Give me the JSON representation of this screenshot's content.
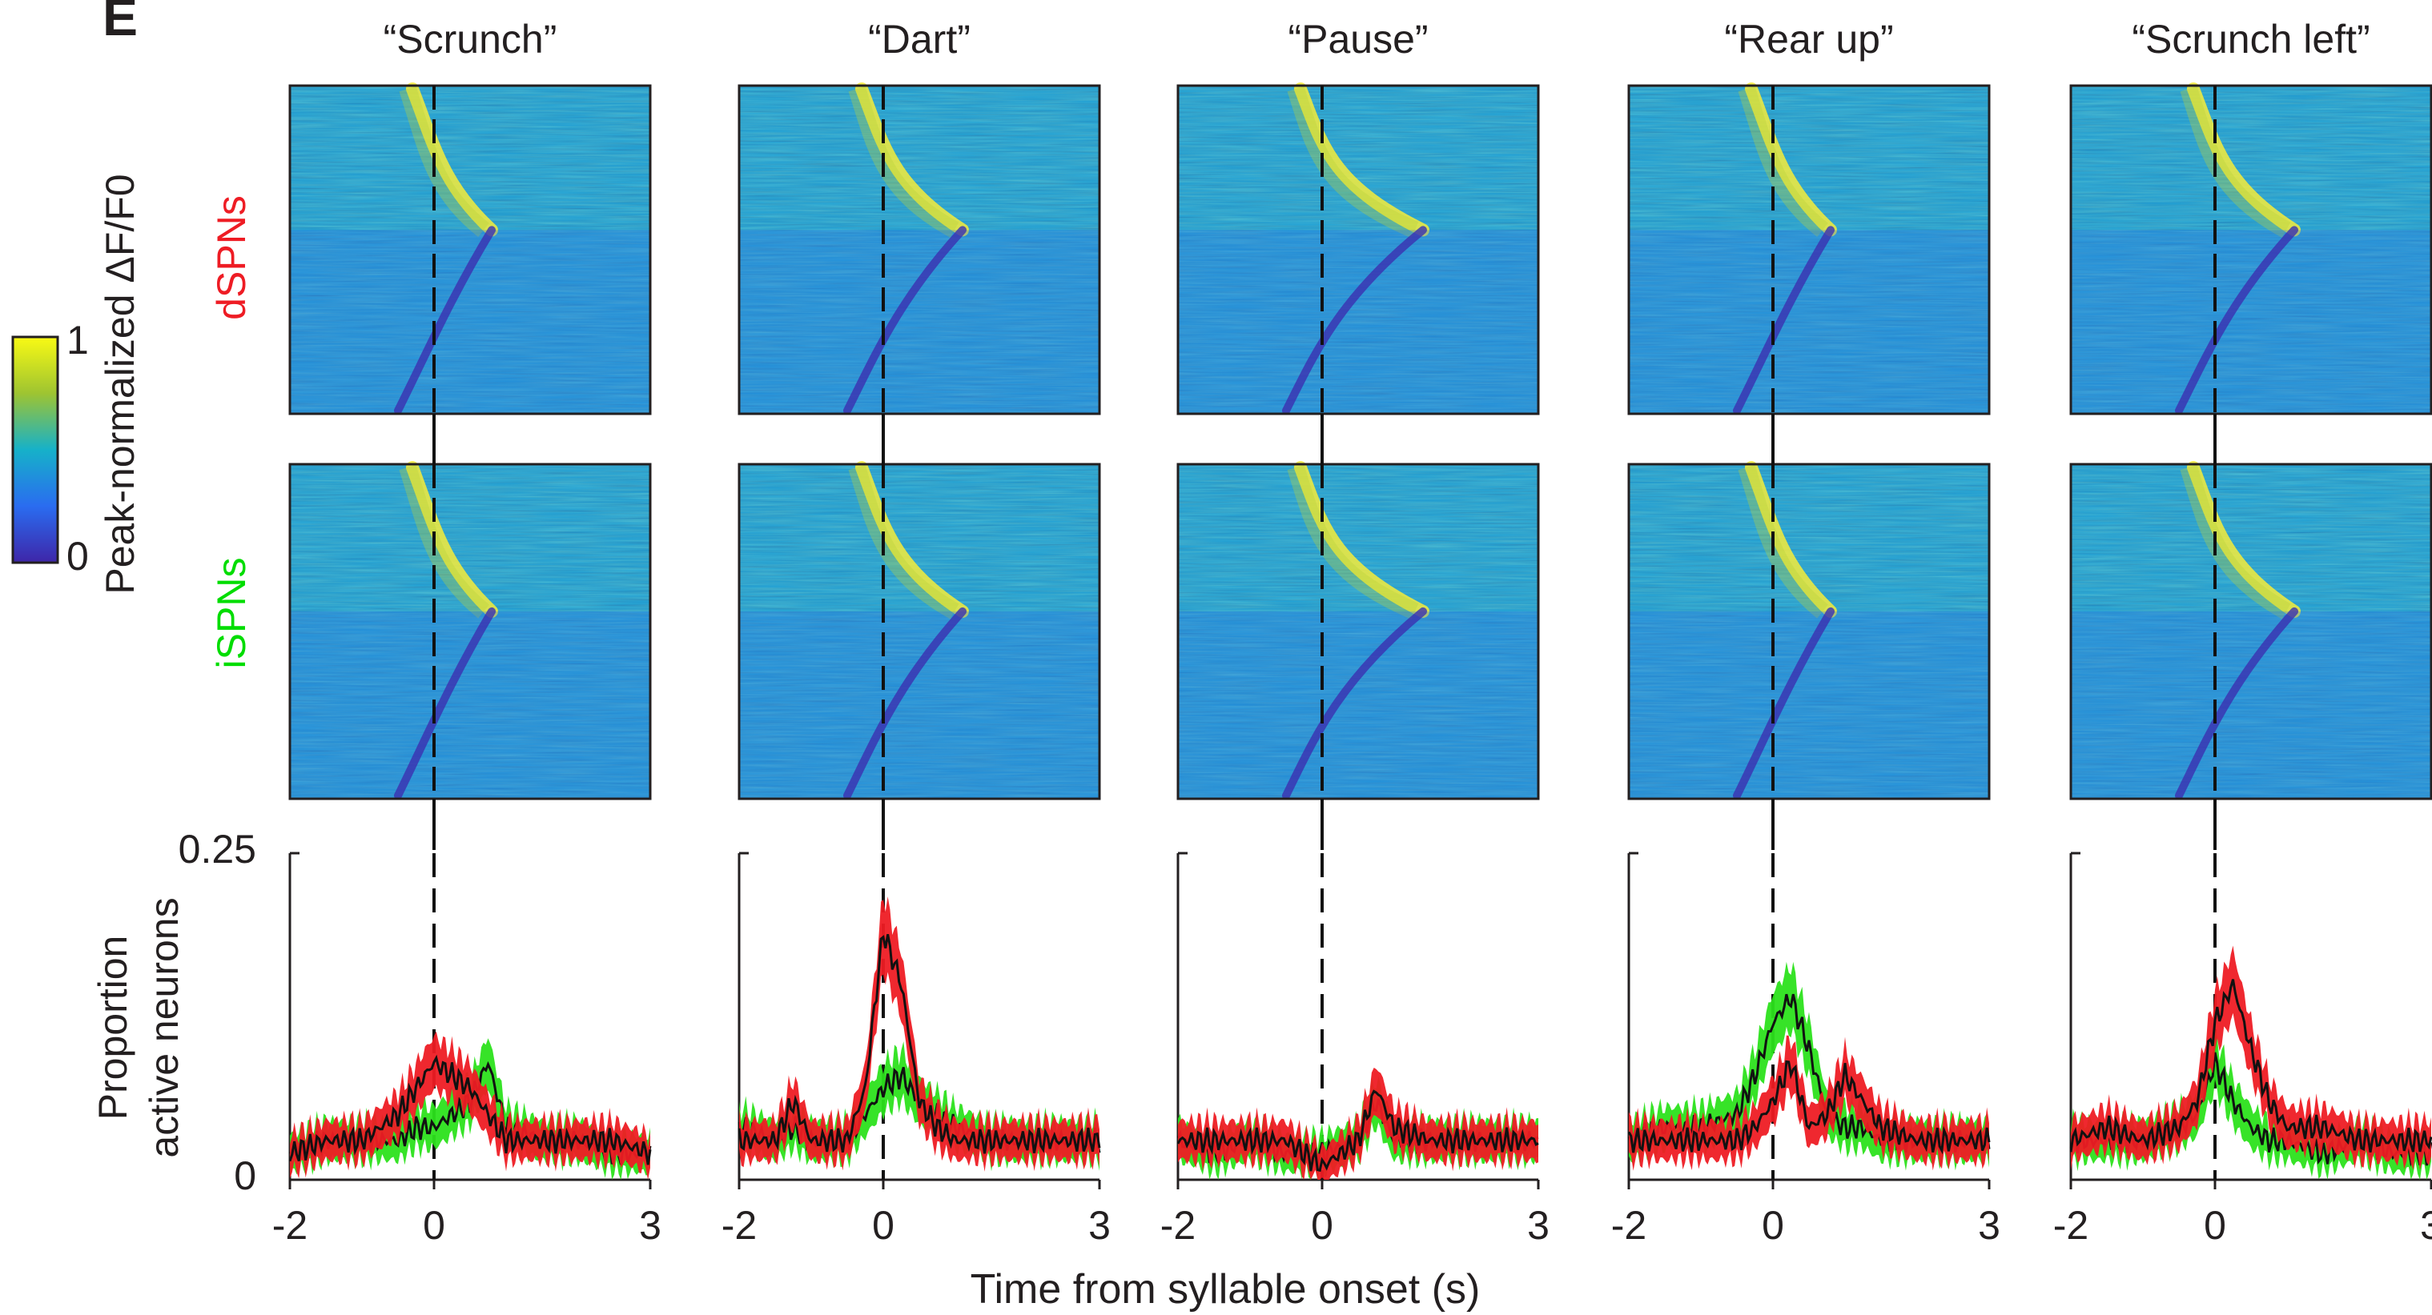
{
  "figure": {
    "panel_letter": "E",
    "colorbar": {
      "label": "Peak-normalized ΔF/F0",
      "max_label": "1",
      "min_label": "0"
    },
    "row_labels": [
      {
        "text": "dSPNs",
        "color": "#ee1c24"
      },
      {
        "text": "iSPNs",
        "color": "#00dd00"
      }
    ],
    "xlabel": "Time from syllable onset (s)",
    "ylabel_line1": "Proportion",
    "ylabel_line2": "active neurons",
    "ytick_top": "0.25",
    "ytick_bottom": "0",
    "series_colors": {
      "dSPN": "#ee1c24",
      "iSPN": "#2ce21c",
      "mean": "#111111"
    }
  },
  "chart_data": [
    {
      "type": "line",
      "title": "“Scrunch”",
      "xlabel": "Time from syllable onset (s)",
      "ylabel": "Proportion active neurons",
      "xlim": [
        -2,
        3
      ],
      "ylim": [
        0,
        0.25
      ],
      "xticks": [
        "-2",
        "0",
        "3"
      ],
      "yticks": [
        "0",
        "0.25"
      ],
      "x": [
        -2,
        -1.5,
        -1,
        -0.5,
        -0.25,
        0,
        0.25,
        0.5,
        0.75,
        1,
        1.5,
        2,
        2.5,
        3
      ],
      "series": [
        {
          "name": "dSPNs",
          "values": [
            0.02,
            0.03,
            0.03,
            0.05,
            0.07,
            0.09,
            0.08,
            0.07,
            0.05,
            0.03,
            0.03,
            0.03,
            0.03,
            0.02
          ]
        },
        {
          "name": "iSPNs",
          "values": [
            0.02,
            0.03,
            0.03,
            0.03,
            0.04,
            0.04,
            0.05,
            0.06,
            0.09,
            0.04,
            0.03,
            0.03,
            0.02,
            0.02
          ]
        }
      ]
    },
    {
      "type": "line",
      "title": "“Dart”",
      "xlabel": "Time from syllable onset (s)",
      "ylabel": "Proportion active neurons",
      "xlim": [
        -2,
        3
      ],
      "ylim": [
        0,
        0.25
      ],
      "xticks": [
        "-2",
        "0",
        "3"
      ],
      "yticks": [
        "0",
        "0.25"
      ],
      "x": [
        -2,
        -1.5,
        -1.25,
        -1,
        -0.5,
        -0.25,
        0,
        0.25,
        0.5,
        0.75,
        1,
        1.5,
        2,
        2.5,
        3
      ],
      "series": [
        {
          "name": "dSPNs",
          "values": [
            0.03,
            0.03,
            0.06,
            0.03,
            0.03,
            0.07,
            0.19,
            0.15,
            0.06,
            0.04,
            0.03,
            0.03,
            0.03,
            0.03,
            0.03
          ]
        },
        {
          "name": "iSPNs",
          "values": [
            0.04,
            0.03,
            0.04,
            0.03,
            0.03,
            0.05,
            0.07,
            0.08,
            0.06,
            0.05,
            0.04,
            0.03,
            0.03,
            0.03,
            0.03
          ]
        }
      ]
    },
    {
      "type": "line",
      "title": "“Pause”",
      "xlabel": "Time from syllable onset (s)",
      "ylabel": "Proportion active neurons",
      "xlim": [
        -2,
        3
      ],
      "ylim": [
        0,
        0.25
      ],
      "xticks": [
        "-2",
        "0",
        "3"
      ],
      "yticks": [
        "0",
        "0.25"
      ],
      "x": [
        -2,
        -1.5,
        -1,
        -0.5,
        0,
        0.5,
        0.75,
        1,
        1.5,
        2,
        2.5,
        3
      ],
      "series": [
        {
          "name": "dSPNs",
          "values": [
            0.03,
            0.03,
            0.03,
            0.03,
            0.01,
            0.03,
            0.07,
            0.04,
            0.03,
            0.03,
            0.03,
            0.03
          ]
        },
        {
          "name": "iSPNs",
          "values": [
            0.03,
            0.02,
            0.03,
            0.02,
            0.02,
            0.03,
            0.06,
            0.03,
            0.03,
            0.03,
            0.03,
            0.03
          ]
        }
      ]
    },
    {
      "type": "line",
      "title": "“Rear up”",
      "xlabel": "Time from syllable onset (s)",
      "ylabel": "Proportion active neurons",
      "xlim": [
        -2,
        3
      ],
      "ylim": [
        0,
        0.25
      ],
      "xticks": [
        "-2",
        "0",
        "3"
      ],
      "yticks": [
        "0",
        "0.25"
      ],
      "x": [
        -2,
        -1.5,
        -1,
        -0.5,
        -0.25,
        0,
        0.25,
        0.5,
        0.75,
        1,
        1.25,
        1.5,
        2,
        2.5,
        3
      ],
      "series": [
        {
          "name": "dSPNs",
          "values": [
            0.03,
            0.03,
            0.03,
            0.03,
            0.04,
            0.06,
            0.09,
            0.04,
            0.05,
            0.08,
            0.06,
            0.04,
            0.03,
            0.03,
            0.03
          ]
        },
        {
          "name": "iSPNs",
          "values": [
            0.03,
            0.04,
            0.04,
            0.05,
            0.08,
            0.12,
            0.14,
            0.1,
            0.05,
            0.04,
            0.04,
            0.03,
            0.03,
            0.03,
            0.03
          ]
        }
      ]
    },
    {
      "type": "line",
      "title": "“Scrunch left”",
      "xlabel": "Time from syllable onset (s)",
      "ylabel": "Proportion active neurons",
      "xlim": [
        -2,
        3
      ],
      "ylim": [
        0,
        0.25
      ],
      "xticks": [
        "-2",
        "0",
        "3"
      ],
      "yticks": [
        "0",
        "0.25"
      ],
      "x": [
        -2,
        -1.5,
        -1,
        -0.5,
        -0.25,
        0,
        0.25,
        0.5,
        0.75,
        1,
        1.5,
        2,
        2.5,
        3
      ],
      "series": [
        {
          "name": "dSPNs",
          "values": [
            0.03,
            0.04,
            0.03,
            0.04,
            0.06,
            0.12,
            0.15,
            0.1,
            0.06,
            0.04,
            0.04,
            0.03,
            0.03,
            0.03
          ]
        },
        {
          "name": "iSPNs",
          "values": [
            0.03,
            0.03,
            0.03,
            0.04,
            0.05,
            0.09,
            0.06,
            0.04,
            0.03,
            0.03,
            0.02,
            0.03,
            0.02,
            0.02
          ]
        }
      ]
    }
  ]
}
